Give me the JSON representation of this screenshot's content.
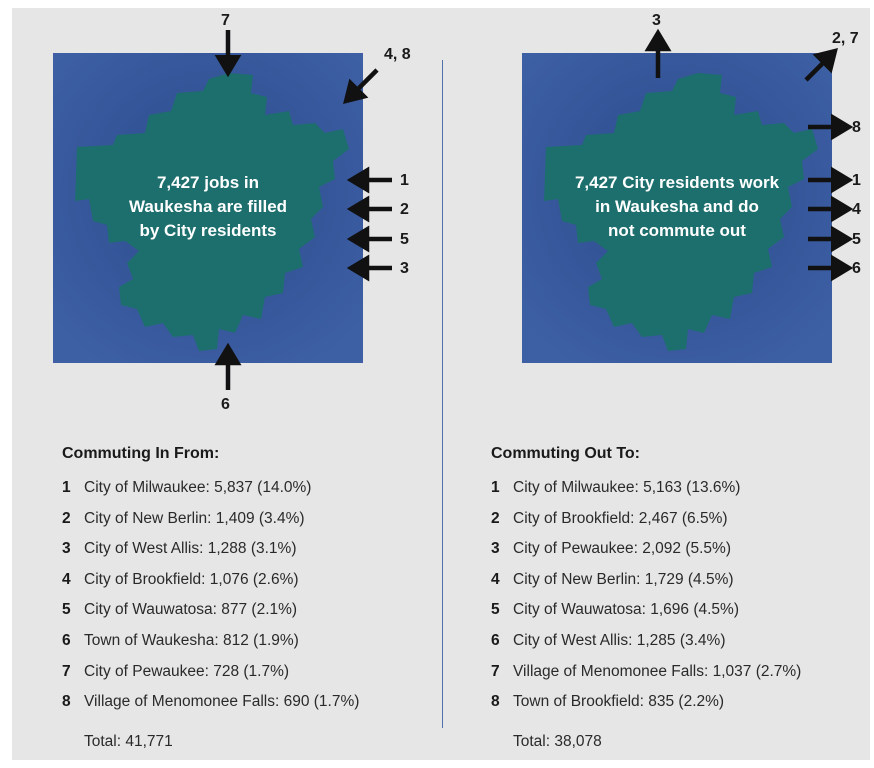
{
  "colors": {
    "map_background": "#3a5a9e",
    "city_shape": "#1d6f6e",
    "panel": "#e6e6e7",
    "divider": "#4f6fa8"
  },
  "commuting_in": {
    "map_text": [
      "7,427 jobs in",
      "Waukesha are filled",
      "by City residents"
    ],
    "arrow_labels": {
      "top": "7",
      "top_right": "4, 8",
      "right_1": "1",
      "right_2": "2",
      "right_3": "5",
      "right_4": "3",
      "bottom": "6"
    },
    "heading": "Commuting In From:",
    "items": [
      {
        "num": "1",
        "text": "City of Milwaukee: 5,837 (14.0%)"
      },
      {
        "num": "2",
        "text": "City of New Berlin: 1,409 (3.4%)"
      },
      {
        "num": "3",
        "text": "City of West Allis: 1,288 (3.1%)"
      },
      {
        "num": "4",
        "text": "City of Brookfield: 1,076 (2.6%)"
      },
      {
        "num": "5",
        "text": "City of Wauwatosa: 877 (2.1%)"
      },
      {
        "num": "6",
        "text": "Town of Waukesha: 812 (1.9%)"
      },
      {
        "num": "7",
        "text": "City of Pewaukee: 728 (1.7%)"
      },
      {
        "num": "8",
        "text": "Village of Menomonee Falls: 690 (1.7%)"
      }
    ],
    "total": "Total: 41,771"
  },
  "commuting_out": {
    "map_text": [
      "7,427 City residents work",
      "in Waukesha and do",
      "not commute out"
    ],
    "arrow_labels": {
      "top": "3",
      "top_right": "2, 7",
      "right_0": "8",
      "right_1": "1",
      "right_2": "4",
      "right_3": "5",
      "right_4": "6"
    },
    "heading": "Commuting Out To:",
    "items": [
      {
        "num": "1",
        "text": "City of Milwaukee: 5,163 (13.6%)"
      },
      {
        "num": "2",
        "text": "City of Brookfield: 2,467 (6.5%)"
      },
      {
        "num": "3",
        "text": "City of Pewaukee: 2,092 (5.5%)"
      },
      {
        "num": "4",
        "text": "City of New Berlin: 1,729 (4.5%)"
      },
      {
        "num": "5",
        "text": "City of Wauwatosa: 1,696 (4.5%)"
      },
      {
        "num": "6",
        "text": "City of West Allis: 1,285 (3.4%)"
      },
      {
        "num": "7",
        "text": "Village of Menomonee Falls: 1,037 (2.7%)"
      },
      {
        "num": "8",
        "text": "Town of Brookfield: 835 (2.2%)"
      }
    ],
    "total": "Total: 38,078"
  }
}
